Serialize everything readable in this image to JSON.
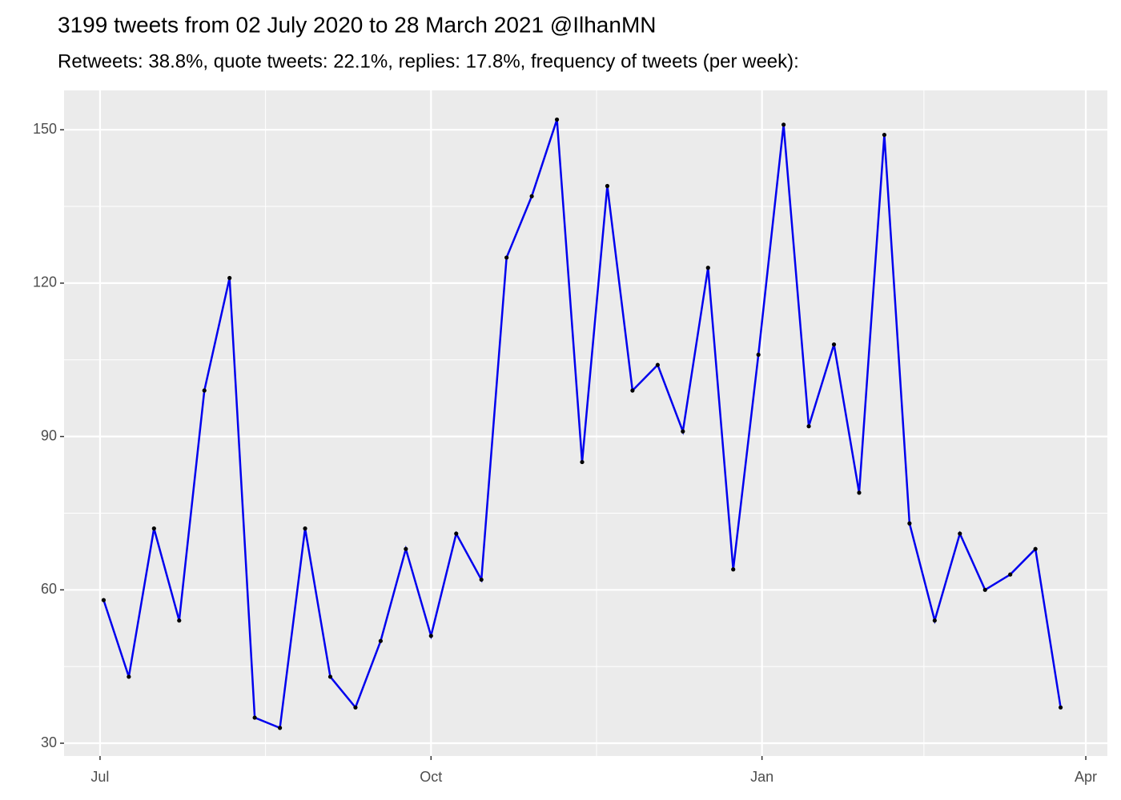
{
  "chart_data": {
    "type": "line",
    "title": "3199 tweets from 02 July 2020 to 28 March 2021 @IlhanMN",
    "subtitle": "Retweets: 38.8%, quote tweets: 22.1%, replies: 17.8%, frequency of tweets (per week):",
    "x": [
      1,
      8,
      15,
      22,
      29,
      36,
      43,
      50,
      57,
      64,
      71,
      78,
      85,
      92,
      99,
      106,
      113,
      120,
      127,
      134,
      141,
      148,
      155,
      162,
      169,
      176,
      183,
      190,
      197,
      204,
      211,
      218,
      225,
      232,
      239,
      246,
      253,
      260,
      267
    ],
    "series": [
      {
        "color": "#0000ee",
        "point_color": "#000000",
        "values": [
          58,
          43,
          72,
          54,
          99,
          121,
          35,
          33,
          72,
          43,
          37,
          50,
          68,
          51,
          71,
          62,
          125,
          137,
          152,
          85,
          139,
          99,
          104,
          91,
          123,
          64,
          106,
          151,
          92,
          108,
          79,
          149,
          73,
          54,
          71,
          60,
          63,
          68,
          37
        ]
      }
    ],
    "xlim": [
      -10,
      280
    ],
    "xticks": [
      {
        "value": 0,
        "label": "Jul"
      },
      {
        "value": 92,
        "label": "Oct"
      },
      {
        "value": 184,
        "label": "Jan"
      },
      {
        "value": 274,
        "label": "Apr"
      }
    ],
    "ylim": [
      27.5,
      157.7
    ],
    "yticks": [
      30,
      60,
      90,
      120,
      150
    ],
    "grid": true
  }
}
